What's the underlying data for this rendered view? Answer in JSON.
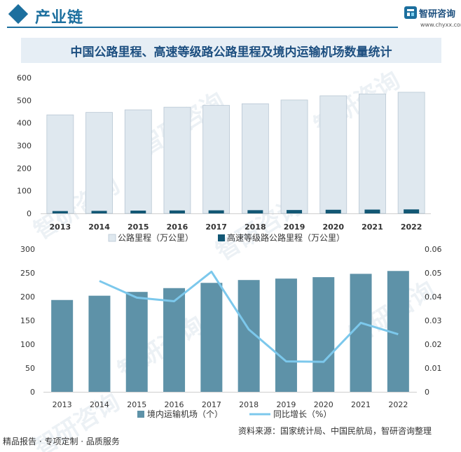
{
  "header": {
    "title": "产业链"
  },
  "logo": {
    "name": "智研咨询",
    "url": "www.chyxx.com",
    "icon": "chyxx-logo-icon"
  },
  "main_title": "中国公路里程、高速等级路公路里程及境内运输机场数量统计",
  "watermark": "智研咨询",
  "footer": {
    "left": "精品报告 · 专项定制 · 品质服务",
    "source": "资料来源：国家统计局、中国民航局，智研咨询整理"
  },
  "colors": {
    "brand": "#1c6f9e",
    "road_bar": "#dfe8ef",
    "road_bar_stroke": "#b7c6d3",
    "highway_bar": "#125774",
    "airport_bar": "#5e92a8",
    "growth_line": "#7cc8ec"
  },
  "chart_data": [
    {
      "type": "bar",
      "categories": [
        "2013",
        "2014",
        "2015",
        "2016",
        "2017",
        "2018",
        "2019",
        "2020",
        "2021",
        "2022"
      ],
      "ylim": [
        0,
        600
      ],
      "yticks": [
        "0",
        "100",
        "200",
        "300",
        "400",
        "500",
        "600"
      ],
      "grid": false,
      "legend": "bottom",
      "series": [
        {
          "name": "公路里程（万公里）",
          "values": [
            435.6,
            446.4,
            457.7,
            469.6,
            477.4,
            484.7,
            501.3,
            519.8,
            528.1,
            535.5
          ]
        },
        {
          "name": "高速等级路公路里程（万公里）",
          "values": [
            10.4,
            11.2,
            12.4,
            13.1,
            13.6,
            14.3,
            15.0,
            16.1,
            16.9,
            17.7
          ]
        }
      ]
    },
    {
      "type": "bar",
      "categories": [
        "2013",
        "2014",
        "2015",
        "2016",
        "2017",
        "2018",
        "2019",
        "2020",
        "2021",
        "2022"
      ],
      "ylim": [
        0,
        300
      ],
      "yticks": [
        "0",
        "50",
        "100",
        "150",
        "200",
        "250",
        "300"
      ],
      "y2lim": [
        0,
        0.06
      ],
      "y2ticks": [
        "0",
        "0.01",
        "0.02",
        "0.03",
        "0.04",
        "0.05",
        "0.06"
      ],
      "grid": false,
      "legend": "bottom",
      "series": [
        {
          "name": "境内运输机场（个）",
          "type": "bar",
          "axis": "left",
          "values": [
            193,
            202,
            210,
            218,
            229,
            235,
            238,
            241,
            248,
            254
          ]
        },
        {
          "name": "同比增长（%）",
          "type": "line",
          "axis": "right",
          "values": [
            null,
            0.0466,
            0.0396,
            0.0381,
            0.0505,
            0.0262,
            0.0128,
            0.0126,
            0.029,
            0.0242
          ]
        }
      ]
    }
  ]
}
